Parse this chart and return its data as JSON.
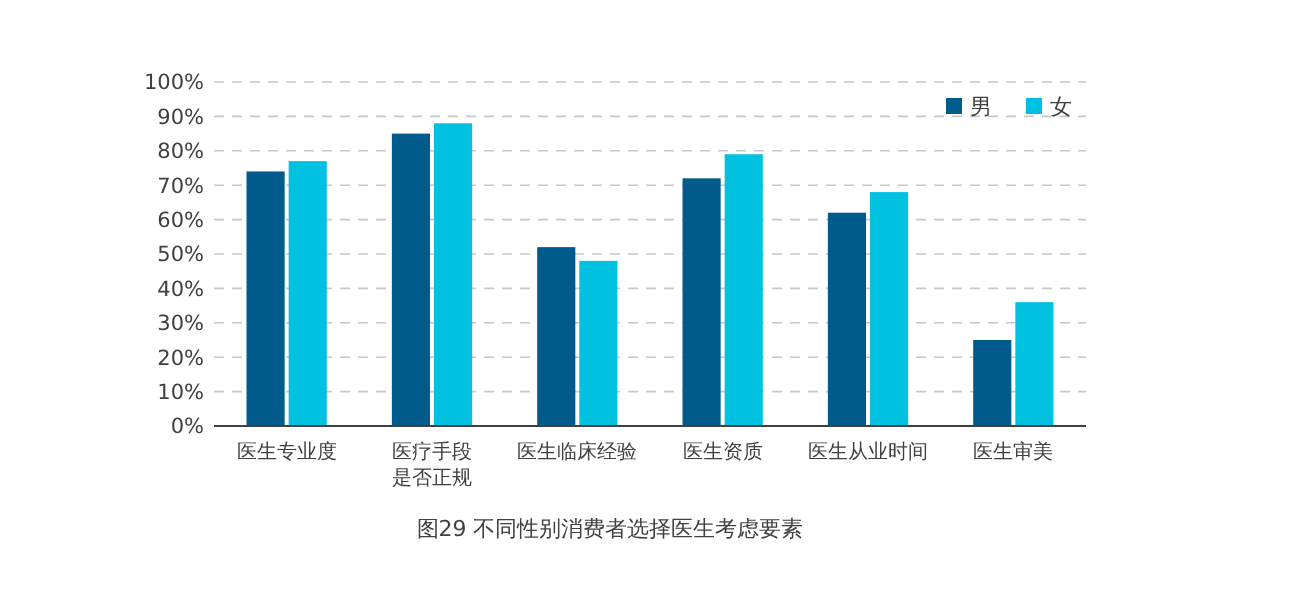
{
  "chart_data": {
    "type": "bar",
    "title": "图29  不同性别消费者选择医生考虑要素",
    "categories": [
      "医生专业度",
      "医疗手段是否正规",
      "医生临床经验",
      "医生资质",
      "医生从业时间",
      "医生审美"
    ],
    "series": [
      {
        "name": "男",
        "color": "#005b8c",
        "values": [
          74,
          85,
          52,
          72,
          62,
          25
        ]
      },
      {
        "name": "女",
        "color": "#00c1e0",
        "values": [
          77,
          88,
          48,
          79,
          68,
          36
        ]
      }
    ],
    "ylim": [
      0,
      100
    ],
    "yticks": [
      {
        "value": 0,
        "label": "0%"
      },
      {
        "value": 10,
        "label": "10%"
      },
      {
        "value": 20,
        "label": "20%"
      },
      {
        "value": 30,
        "label": "30%"
      },
      {
        "value": 40,
        "label": "40%"
      },
      {
        "value": 50,
        "label": "50%"
      },
      {
        "value": 60,
        "label": "60%"
      },
      {
        "value": 70,
        "label": "70%"
      },
      {
        "value": 80,
        "label": "80%"
      },
      {
        "value": 90,
        "label": "90%"
      },
      {
        "value": 100,
        "label": "100%"
      }
    ],
    "grid": "y",
    "legend": "top right"
  }
}
